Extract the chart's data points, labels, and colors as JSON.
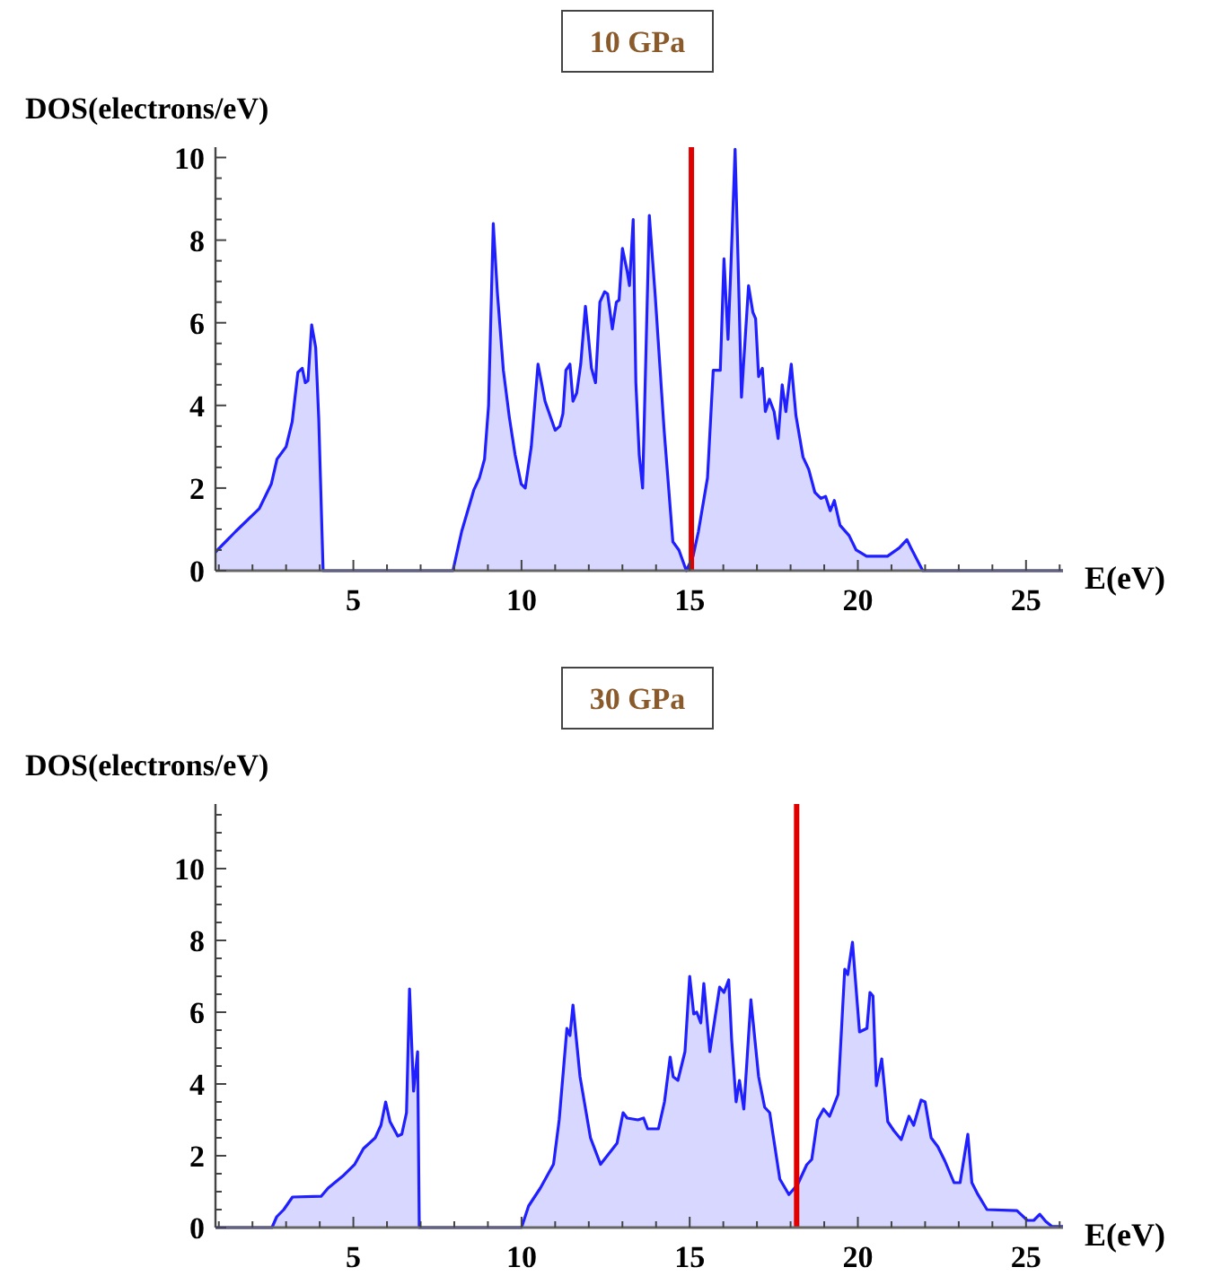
{
  "chart_data": [
    {
      "type": "area",
      "title": "10 GPa",
      "xlabel": "E(eV)",
      "ylabel": "DOS(electrons/eV)",
      "xlim": [
        0.9,
        26.1
      ],
      "ylim": [
        0,
        10.25
      ],
      "xticks": [
        {
          "value": 1,
          "label": null
        },
        {
          "value": 2,
          "label": null
        },
        {
          "value": 3,
          "label": null
        },
        {
          "value": 4,
          "label": null
        },
        5,
        {
          "value": 6,
          "label": null
        },
        {
          "value": 7,
          "label": null
        },
        {
          "value": 8,
          "label": null
        },
        {
          "value": 9,
          "label": null
        },
        10,
        {
          "value": 11,
          "label": null
        },
        {
          "value": 12,
          "label": null
        },
        {
          "value": 13,
          "label": null
        },
        {
          "value": 14,
          "label": null
        },
        15,
        {
          "value": 16,
          "label": null
        },
        {
          "value": 17,
          "label": null
        },
        {
          "value": 18,
          "label": null
        },
        {
          "value": 19,
          "label": null
        },
        20,
        {
          "value": 21,
          "label": null
        },
        {
          "value": 22,
          "label": null
        },
        {
          "value": 23,
          "label": null
        },
        {
          "value": 24,
          "label": null
        },
        25,
        {
          "value": 26,
          "label": null
        }
      ],
      "yticks": [
        0,
        {
          "value": 0.5,
          "label": null
        },
        {
          "value": 1,
          "label": null
        },
        {
          "value": 1.5,
          "label": null
        },
        2,
        {
          "value": 2.5,
          "label": null
        },
        {
          "value": 3,
          "label": null
        },
        {
          "value": 3.5,
          "label": null
        },
        4,
        {
          "value": 4.5,
          "label": null
        },
        {
          "value": 5,
          "label": null
        },
        {
          "value": 5.5,
          "label": null
        },
        6,
        {
          "value": 6.5,
          "label": null
        },
        {
          "value": 7,
          "label": null
        },
        {
          "value": 7.5,
          "label": null
        },
        8,
        {
          "value": 8.5,
          "label": null
        },
        {
          "value": 9,
          "label": null
        },
        {
          "value": 9.5,
          "label": null
        },
        10
      ],
      "series": [
        {
          "color": "#1f1fff",
          "x": [
            0.9,
            0.96,
            1.5,
            2.2,
            2.56,
            2.73,
            3.0,
            3.18,
            3.35,
            3.48,
            3.57,
            3.65,
            3.76,
            3.88,
            3.97,
            4.1,
            7.96,
            8.22,
            8.58,
            8.75,
            8.9,
            9.02,
            9.16,
            9.28,
            9.46,
            9.64,
            9.81,
            9.99,
            10.11,
            10.29,
            10.49,
            10.7,
            11.0,
            11.14,
            11.23,
            11.32,
            11.44,
            11.53,
            11.64,
            11.76,
            11.9,
            12.08,
            12.2,
            12.33,
            12.47,
            12.56,
            12.7,
            12.82,
            12.9,
            13.0,
            13.14,
            13.21,
            13.32,
            13.4,
            13.5,
            13.6,
            13.8,
            13.98,
            14.24,
            14.5,
            14.68,
            14.9,
            15.1,
            15.26,
            15.53,
            15.7,
            15.91,
            16.02,
            16.14,
            16.23,
            16.35,
            16.44,
            16.54,
            16.75,
            16.88,
            16.96,
            17.05,
            17.16,
            17.25,
            17.37,
            17.51,
            17.63,
            17.75,
            17.86,
            18.02,
            18.16,
            18.37,
            18.54,
            18.72,
            18.9,
            19.04,
            19.18,
            19.3,
            19.47,
            19.74,
            19.95,
            20.26,
            20.88,
            21.23,
            21.46,
            21.58,
            21.93,
            26.1
          ],
          "values": [
            0.45,
            0.5,
            0.95,
            1.5,
            2.1,
            2.7,
            3.0,
            3.6,
            4.8,
            4.9,
            4.55,
            4.6,
            5.95,
            5.4,
            3.7,
            0,
            0,
            0.95,
            1.95,
            2.25,
            2.7,
            4.0,
            8.4,
            6.75,
            4.85,
            3.7,
            2.8,
            2.1,
            2.0,
            3.0,
            5.0,
            4.1,
            3.4,
            3.5,
            3.8,
            4.85,
            5.0,
            4.1,
            4.3,
            5.0,
            6.4,
            4.9,
            4.55,
            6.5,
            6.75,
            6.7,
            5.85,
            6.5,
            6.55,
            7.8,
            7.25,
            6.9,
            8.5,
            4.55,
            2.8,
            2.0,
            8.6,
            6.6,
            3.4,
            0.7,
            0.5,
            0,
            0.35,
            0.95,
            2.25,
            4.85,
            4.85,
            7.55,
            5.6,
            7.45,
            10.2,
            7.45,
            4.2,
            6.9,
            6.25,
            6.1,
            4.7,
            4.9,
            3.85,
            4.15,
            3.85,
            3.2,
            4.5,
            3.85,
            5.0,
            3.75,
            2.75,
            2.45,
            1.9,
            1.75,
            1.8,
            1.45,
            1.7,
            1.1,
            0.85,
            0.5,
            0.35,
            0.35,
            0.55,
            0.75,
            0.55,
            0,
            0
          ]
        }
      ],
      "ref_lines": [
        {
          "axis": "x",
          "value": 15.05,
          "color": "#e00000"
        }
      ]
    },
    {
      "type": "area",
      "title": "30 GPa",
      "xlabel": "E(eV)",
      "ylabel": "DOS(electrons/eV)",
      "xlim": [
        0.9,
        26.1
      ],
      "ylim": [
        0,
        11.8
      ],
      "xticks": [
        {
          "value": 1,
          "label": null
        },
        {
          "value": 2,
          "label": null
        },
        {
          "value": 3,
          "label": null
        },
        {
          "value": 4,
          "label": null
        },
        5,
        {
          "value": 6,
          "label": null
        },
        {
          "value": 7,
          "label": null
        },
        {
          "value": 8,
          "label": null
        },
        {
          "value": 9,
          "label": null
        },
        10,
        {
          "value": 11,
          "label": null
        },
        {
          "value": 12,
          "label": null
        },
        {
          "value": 13,
          "label": null
        },
        {
          "value": 14,
          "label": null
        },
        15,
        {
          "value": 16,
          "label": null
        },
        {
          "value": 17,
          "label": null
        },
        {
          "value": 18,
          "label": null
        },
        {
          "value": 19,
          "label": null
        },
        20,
        {
          "value": 21,
          "label": null
        },
        {
          "value": 22,
          "label": null
        },
        {
          "value": 23,
          "label": null
        },
        {
          "value": 24,
          "label": null
        },
        25,
        {
          "value": 26,
          "label": null
        }
      ],
      "yticks": [
        0,
        {
          "value": 0.5,
          "label": null
        },
        {
          "value": 1,
          "label": null
        },
        {
          "value": 1.5,
          "label": null
        },
        2,
        {
          "value": 2.5,
          "label": null
        },
        {
          "value": 3,
          "label": null
        },
        {
          "value": 3.5,
          "label": null
        },
        4,
        {
          "value": 4.5,
          "label": null
        },
        {
          "value": 5,
          "label": null
        },
        {
          "value": 5.5,
          "label": null
        },
        6,
        {
          "value": 6.5,
          "label": null
        },
        {
          "value": 7,
          "label": null
        },
        {
          "value": 7.5,
          "label": null
        },
        8,
        {
          "value": 8.5,
          "label": null
        },
        {
          "value": 9,
          "label": null
        },
        {
          "value": 9.5,
          "label": null
        },
        10,
        {
          "value": 10.5,
          "label": null
        },
        {
          "value": 11,
          "label": null
        },
        {
          "value": 11.5,
          "label": null
        }
      ],
      "series": [
        {
          "color": "#1f1fff",
          "x": [
            0.9,
            2.58,
            2.72,
            2.93,
            3.19,
            4.04,
            4.25,
            4.68,
            5.04,
            5.3,
            5.65,
            5.82,
            5.96,
            6.09,
            6.32,
            6.44,
            6.58,
            6.67,
            6.79,
            6.91,
            6.96,
            10.0,
            10.21,
            10.56,
            10.95,
            11.12,
            11.35,
            11.44,
            11.53,
            11.74,
            12.05,
            12.35,
            12.84,
            13.02,
            13.14,
            13.46,
            13.63,
            13.75,
            14.07,
            14.25,
            14.42,
            14.51,
            14.65,
            14.86,
            15.0,
            15.12,
            15.21,
            15.33,
            15.42,
            15.6,
            15.89,
            16.02,
            16.16,
            16.25,
            16.38,
            16.48,
            16.61,
            16.82,
            17.05,
            17.23,
            17.38,
            17.46,
            17.68,
            17.95,
            18.21,
            18.48,
            18.63,
            18.8,
            18.98,
            19.16,
            19.41,
            19.61,
            19.7,
            19.84,
            20.05,
            20.27,
            20.36,
            20.45,
            20.55,
            20.71,
            20.89,
            21.07,
            21.29,
            21.52,
            21.66,
            21.88,
            22.0,
            22.18,
            22.38,
            22.59,
            22.86,
            23.04,
            23.27,
            23.39,
            23.57,
            23.84,
            24.73,
            24.88,
            25.04,
            25.23,
            25.41,
            25.59,
            25.77,
            26.1
          ],
          "values": [
            0,
            0,
            0.3,
            0.5,
            0.85,
            0.87,
            1.1,
            1.43,
            1.76,
            2.2,
            2.5,
            2.85,
            3.5,
            2.95,
            2.55,
            2.6,
            3.2,
            6.65,
            3.8,
            4.9,
            0,
            0,
            0.6,
            1.1,
            1.76,
            3.0,
            5.55,
            5.35,
            6.2,
            4.2,
            2.5,
            1.76,
            2.35,
            3.2,
            3.05,
            3.0,
            3.05,
            2.75,
            2.75,
            3.5,
            4.75,
            4.2,
            4.1,
            4.9,
            7.0,
            5.95,
            6.0,
            5.7,
            6.8,
            4.9,
            6.7,
            6.55,
            6.9,
            5.2,
            3.5,
            4.1,
            3.3,
            6.35,
            4.2,
            3.35,
            3.2,
            2.7,
            1.35,
            0.92,
            1.2,
            1.75,
            1.9,
            3.0,
            3.3,
            3.1,
            3.7,
            7.2,
            7.05,
            7.95,
            5.45,
            5.55,
            6.55,
            6.45,
            3.95,
            4.7,
            2.95,
            2.7,
            2.45,
            3.1,
            2.85,
            3.55,
            3.5,
            2.5,
            2.25,
            1.85,
            1.25,
            1.25,
            2.6,
            1.25,
            0.92,
            0.5,
            0.47,
            0.34,
            0.2,
            0.2,
            0.37,
            0.17,
            0.03,
            0.03
          ]
        }
      ],
      "ref_lines": [
        {
          "axis": "x",
          "value": 18.18,
          "color": "#e00000"
        }
      ]
    }
  ]
}
